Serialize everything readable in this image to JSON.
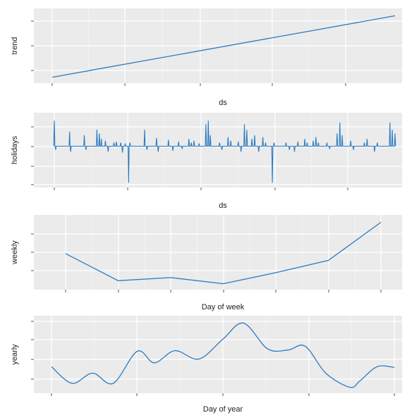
{
  "colors": {
    "panel_background": "#ebebeb",
    "grid_major": "#ffffff",
    "grid_minor": "#f4f4f4",
    "series_line": "#2b7bc2",
    "tick_mark": "#555555",
    "text": "#222222"
  },
  "chart_data": [
    {
      "id": "trend",
      "type": "line",
      "title": "",
      "xlabel": "ds",
      "ylabel": "trend",
      "tick_labels_visible": false,
      "grid": true,
      "x": [
        0,
        1
      ],
      "series": [
        {
          "values": [
            0.0,
            1.0
          ]
        }
      ],
      "ylim": [
        -0.05,
        1.05
      ]
    },
    {
      "id": "holidays",
      "type": "line",
      "title": "",
      "xlabel": "ds",
      "ylabel": "holidays",
      "tick_labels_visible": false,
      "grid": true,
      "baseline": 0,
      "ylim": [
        -2.1,
        1.6
      ],
      "spikes": [
        [
          0.0,
          1.4
        ],
        [
          0.004,
          -0.2
        ],
        [
          0.045,
          0.8
        ],
        [
          0.048,
          -0.3
        ],
        [
          0.088,
          0.6
        ],
        [
          0.093,
          -0.2
        ],
        [
          0.125,
          0.9
        ],
        [
          0.132,
          0.7
        ],
        [
          0.138,
          0.4
        ],
        [
          0.15,
          0.3
        ],
        [
          0.158,
          -0.3
        ],
        [
          0.175,
          0.2
        ],
        [
          0.182,
          0.25
        ],
        [
          0.195,
          0.2
        ],
        [
          0.2,
          -0.35
        ],
        [
          0.208,
          0.15
        ],
        [
          0.218,
          -2.0
        ],
        [
          0.222,
          0.2
        ],
        [
          0.265,
          0.9
        ],
        [
          0.272,
          -0.2
        ],
        [
          0.3,
          0.45
        ],
        [
          0.305,
          -0.3
        ],
        [
          0.335,
          0.35
        ],
        [
          0.348,
          -0.25
        ],
        [
          0.365,
          0.25
        ],
        [
          0.375,
          -0.15
        ],
        [
          0.395,
          0.4
        ],
        [
          0.402,
          0.2
        ],
        [
          0.41,
          0.3
        ],
        [
          0.425,
          0.15
        ],
        [
          0.445,
          1.2
        ],
        [
          0.452,
          1.4
        ],
        [
          0.458,
          0.6
        ],
        [
          0.485,
          0.2
        ],
        [
          0.492,
          -0.2
        ],
        [
          0.51,
          0.5
        ],
        [
          0.518,
          0.3
        ],
        [
          0.54,
          0.25
        ],
        [
          0.548,
          -0.3
        ],
        [
          0.558,
          1.2
        ],
        [
          0.565,
          0.9
        ],
        [
          0.58,
          0.4
        ],
        [
          0.588,
          0.6
        ],
        [
          0.6,
          -0.3
        ],
        [
          0.612,
          0.5
        ],
        [
          0.62,
          0.2
        ],
        [
          0.64,
          -2.0
        ],
        [
          0.645,
          0.2
        ],
        [
          0.68,
          0.2
        ],
        [
          0.69,
          -0.2
        ],
        [
          0.705,
          -0.3
        ],
        [
          0.715,
          0.25
        ],
        [
          0.735,
          0.4
        ],
        [
          0.742,
          0.2
        ],
        [
          0.76,
          0.3
        ],
        [
          0.768,
          0.5
        ],
        [
          0.775,
          0.2
        ],
        [
          0.8,
          0.2
        ],
        [
          0.808,
          -0.15
        ],
        [
          0.83,
          0.7
        ],
        [
          0.838,
          1.3
        ],
        [
          0.845,
          0.6
        ],
        [
          0.87,
          0.3
        ],
        [
          0.878,
          -0.2
        ],
        [
          0.91,
          0.2
        ],
        [
          0.918,
          0.4
        ],
        [
          0.94,
          -0.3
        ],
        [
          0.948,
          0.2
        ],
        [
          0.985,
          1.3
        ],
        [
          0.992,
          0.9
        ],
        [
          1.0,
          0.7
        ]
      ]
    },
    {
      "id": "weekly",
      "type": "line",
      "title": "",
      "xlabel": "Day of week",
      "ylabel": "weekly",
      "tick_labels_visible": false,
      "grid": true,
      "x": [
        0,
        1,
        2,
        3,
        4,
        5,
        6
      ],
      "series": [
        {
          "values": [
            0.49,
            0.05,
            0.1,
            0.0,
            0.18,
            0.38,
            1.0
          ]
        }
      ],
      "ylim": [
        -0.05,
        1.05
      ]
    },
    {
      "id": "yearly",
      "type": "line",
      "title": "",
      "xlabel": "Day of year",
      "ylabel": "yearly",
      "tick_labels_visible": false,
      "grid": true,
      "x": [
        0,
        0.06,
        0.12,
        0.18,
        0.25,
        0.3,
        0.36,
        0.43,
        0.5,
        0.56,
        0.63,
        0.69,
        0.74,
        0.8,
        0.87,
        0.9,
        0.95,
        1.0
      ],
      "series": [
        {
          "values": [
            0.32,
            0.06,
            0.22,
            0.06,
            0.56,
            0.38,
            0.57,
            0.44,
            0.75,
            1.0,
            0.6,
            0.58,
            0.64,
            0.22,
            0.0,
            0.1,
            0.32,
            0.31
          ]
        }
      ],
      "ylim": [
        -0.05,
        1.05
      ]
    }
  ]
}
